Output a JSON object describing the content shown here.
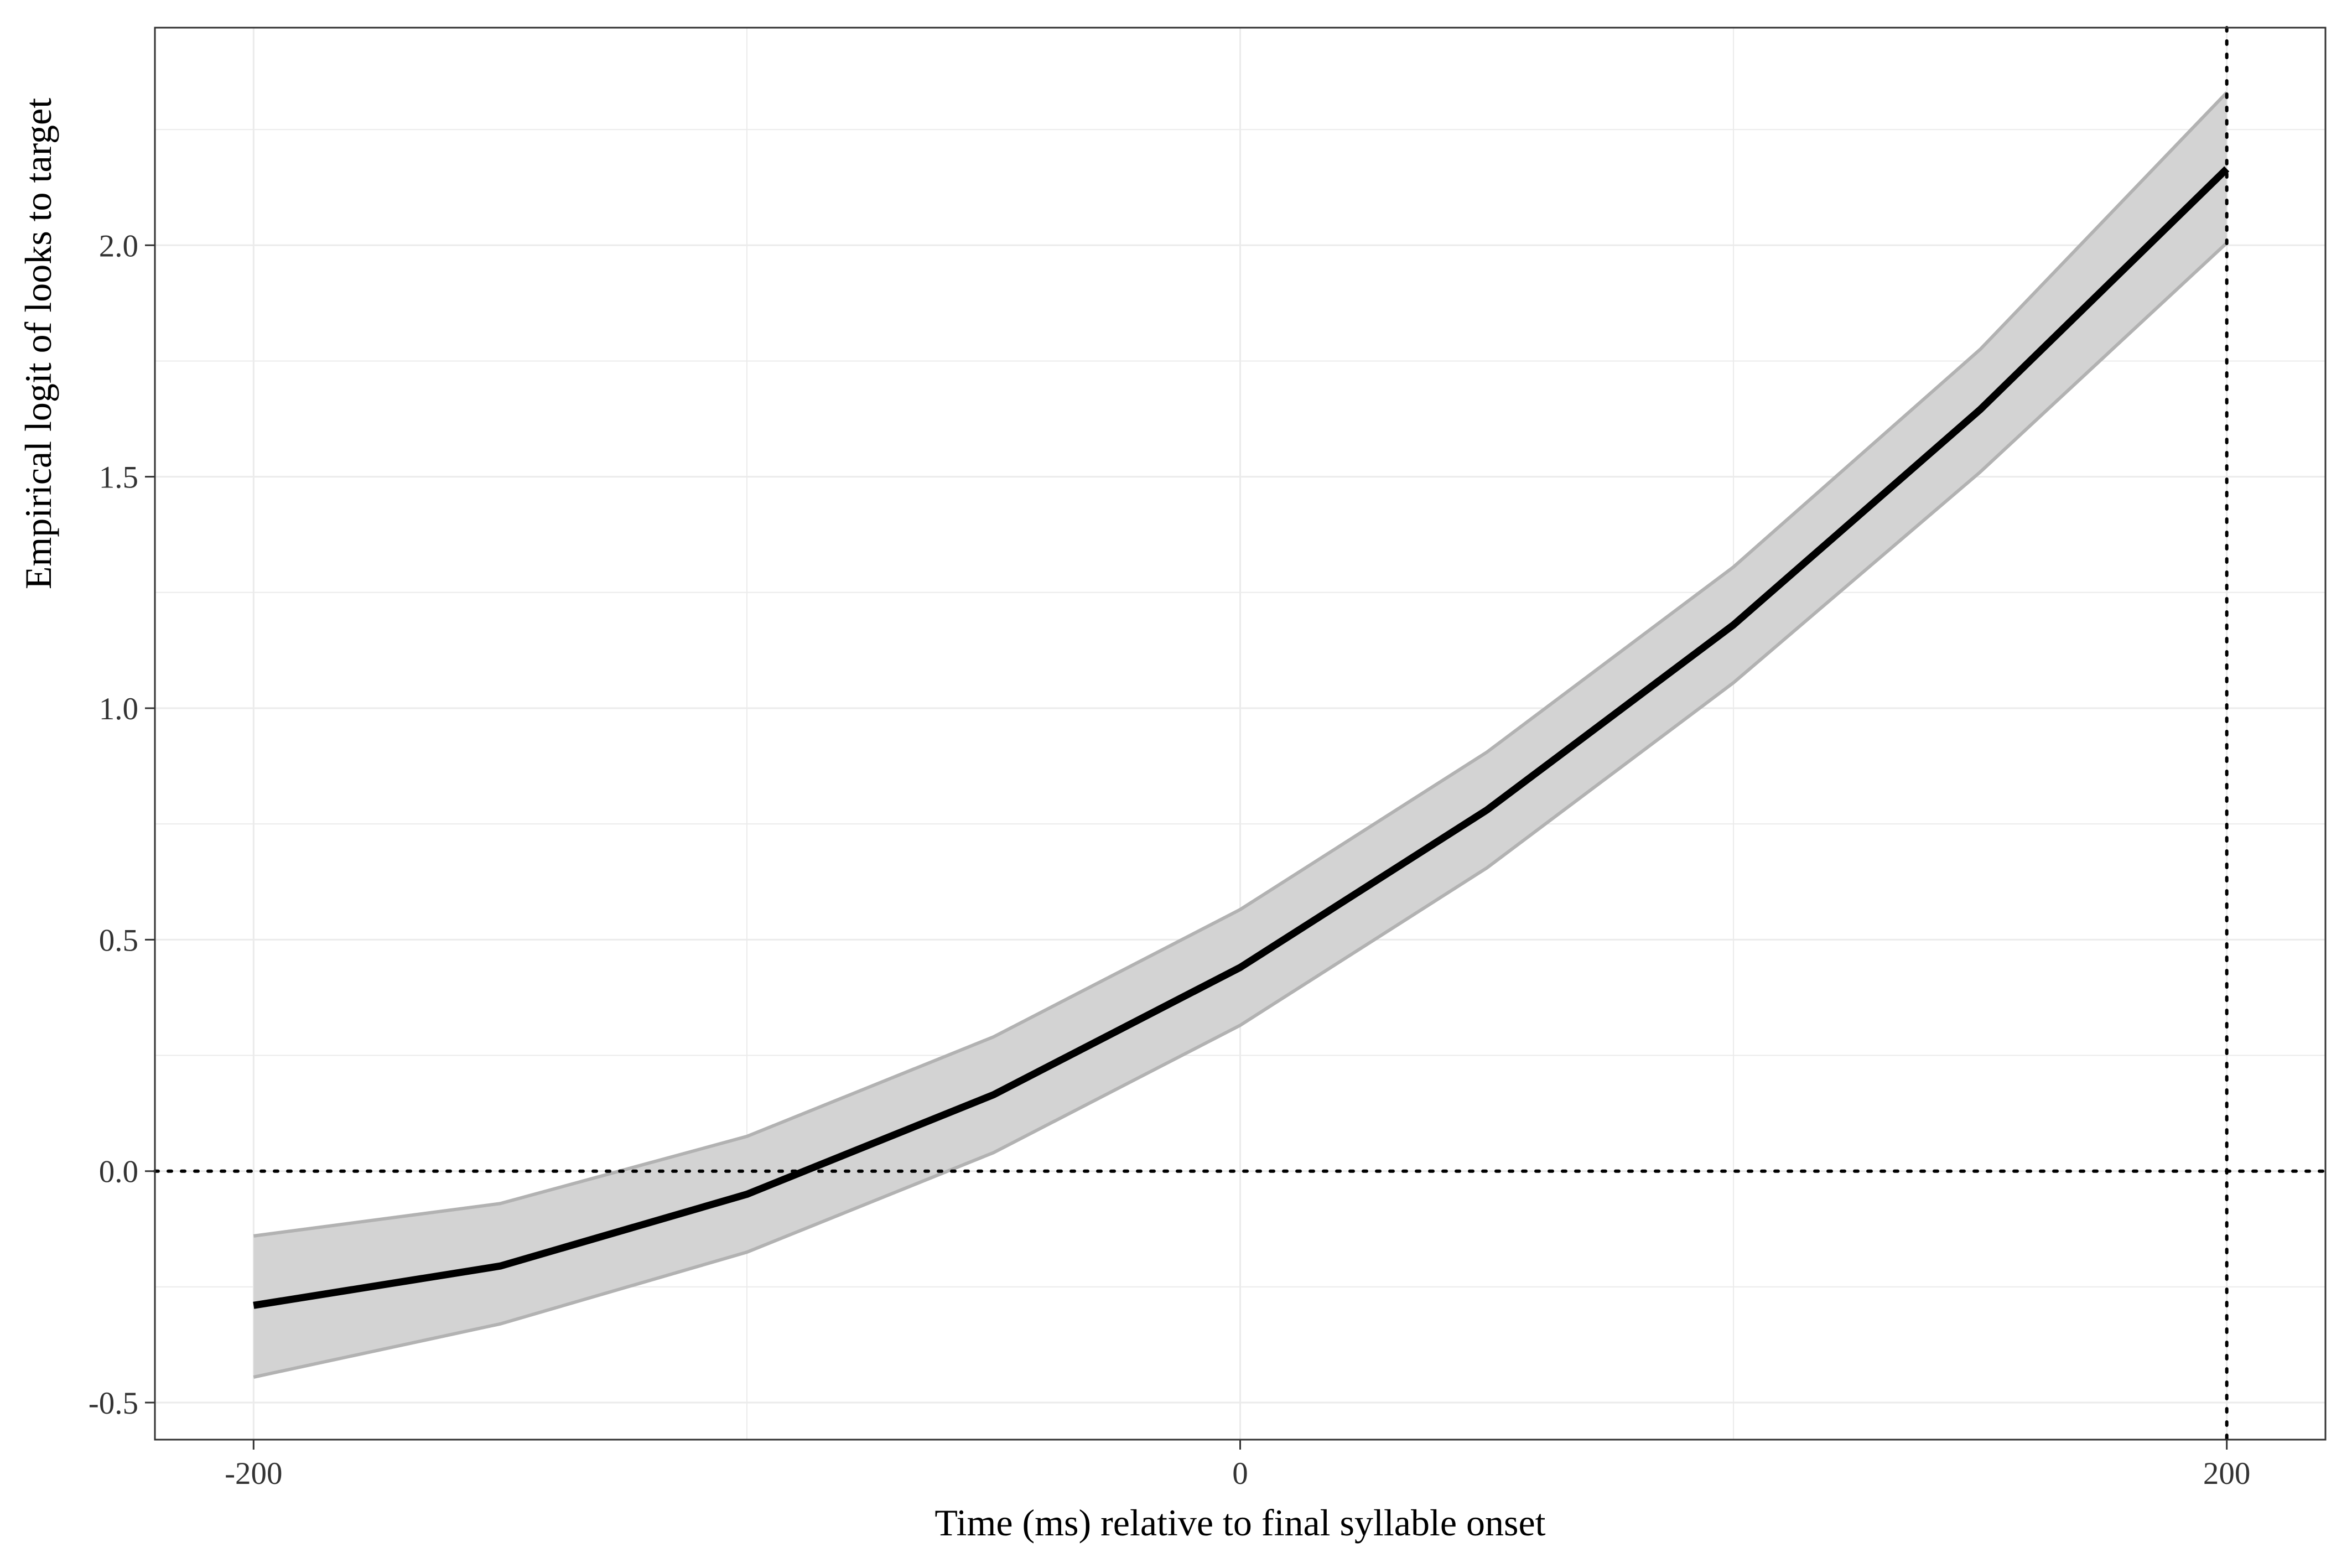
{
  "chart_data": {
    "type": "line",
    "title": "",
    "xlabel": "Time (ms) relative to final syllable onset",
    "ylabel": "Empirical logit of looks to target",
    "xlim": [
      -220,
      220
    ],
    "ylim": [
      -0.58,
      2.47
    ],
    "x_ticks": [
      -200,
      0,
      200
    ],
    "x_tick_labels": [
      "-200",
      "0",
      "200"
    ],
    "y_ticks": [
      -0.5,
      0.0,
      0.5,
      1.0,
      1.5,
      2.0
    ],
    "y_tick_labels": [
      "-0.5",
      "0.0",
      "0.5",
      "1.0",
      "1.5",
      "2.0"
    ],
    "x_minor_ticks": [
      -100,
      100
    ],
    "y_minor_ticks": [
      -0.25,
      0.25,
      0.75,
      1.25,
      1.75,
      2.25
    ],
    "grid": true,
    "legend": "none",
    "series": [
      {
        "x": [
          -200,
          -150,
          -100,
          -50,
          0,
          50,
          100,
          150,
          200
        ],
        "y": [
          -0.29,
          -0.205,
          -0.05,
          0.165,
          0.44,
          0.78,
          1.18,
          1.645,
          2.165
        ],
        "lower": [
          -0.445,
          -0.33,
          -0.175,
          0.04,
          0.315,
          0.655,
          1.055,
          1.51,
          2.005
        ],
        "upper": [
          -0.14,
          -0.07,
          0.075,
          0.29,
          0.565,
          0.905,
          1.305,
          1.775,
          2.33
        ]
      }
    ],
    "reference_lines": [
      {
        "axis": "y",
        "value": 0.0,
        "style": "dotted"
      },
      {
        "axis": "x",
        "value": 200,
        "style": "dotted"
      }
    ],
    "colors": {
      "line": "#000000",
      "ribbon_fill": "#d3d3d3",
      "ribbon_edge": "#b2b2b2",
      "grid": "#ebebeb",
      "panel_border": "#333333"
    }
  }
}
